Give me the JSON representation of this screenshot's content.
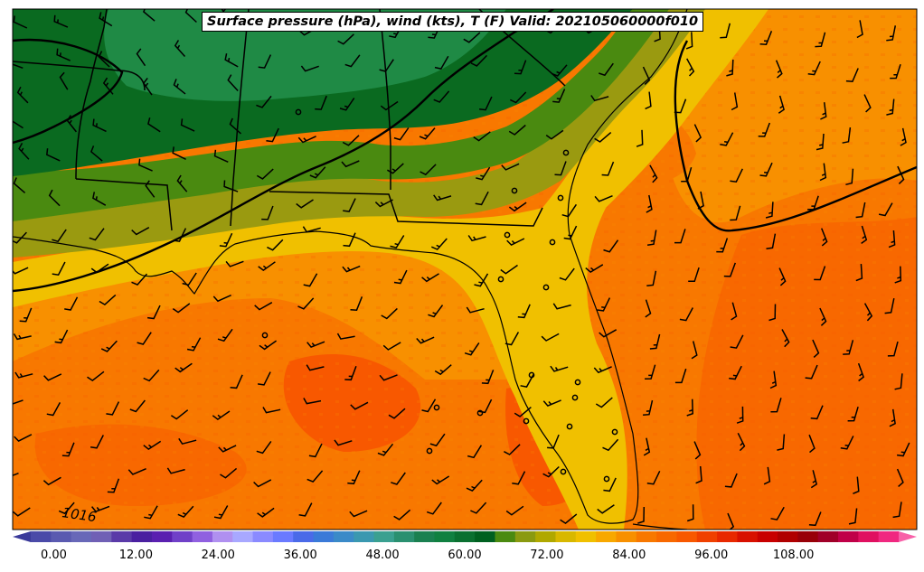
{
  "title": "Surface pressure (hPa), wind (kts), T (F) Valid: 202105060000f010",
  "isobar_labels": [
    "1016"
  ],
  "colorbar": {
    "min": -6,
    "max": 126,
    "step": 3,
    "tick_values": [
      0,
      12,
      24,
      36,
      48,
      60,
      72,
      84,
      96,
      108
    ],
    "tick_labels": [
      "0.00",
      "12.00",
      "24.00",
      "36.00",
      "48.00",
      "60.00",
      "72.00",
      "84.00",
      "96.00",
      "108.00"
    ],
    "colors": [
      "#3a3a9a",
      "#4a4aa8",
      "#5a5ab0",
      "#6868b8",
      "#7060b5",
      "#5a3aa8",
      "#4a20a0",
      "#5a20b0",
      "#7040c8",
      "#9060e0",
      "#b090f0",
      "#a8a8ff",
      "#8a8aff",
      "#6a7aff",
      "#4a6ae8",
      "#3a7ad8",
      "#3a8ac8",
      "#3a98b0",
      "#3aa090",
      "#2a9070",
      "#1a8050",
      "#108040",
      "#0a7030",
      "#006020",
      "#4a8a10",
      "#8a9a10",
      "#b0a800",
      "#d8b800",
      "#f0c000",
      "#f8a800",
      "#f89000",
      "#f87800",
      "#f86800",
      "#f85800",
      "#f04000",
      "#e82800",
      "#d81000",
      "#c80000",
      "#b00000",
      "#980008",
      "#a00028",
      "#c00048",
      "#e01060",
      "#f02880",
      "#f860a8"
    ]
  },
  "legend_colors": {
    "land_dark_green": "#0a6a20",
    "land_green": "#1f8a45",
    "olive": "#8a9a10",
    "gold": "#f0c000",
    "orange_light": "#f8a800",
    "orange": "#f87800",
    "orange_dark": "#f85800"
  }
}
